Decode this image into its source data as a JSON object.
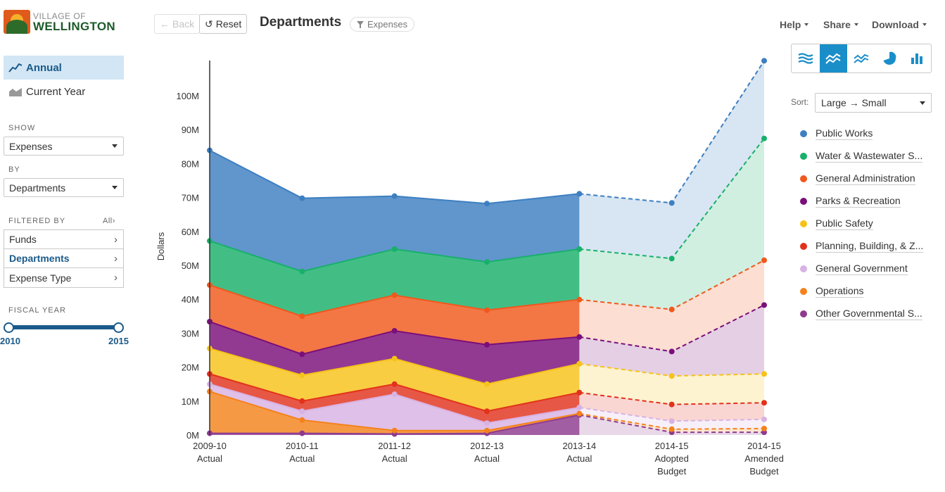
{
  "logo": {
    "line1": "VILLAGE OF",
    "line2": "WELLINGTON"
  },
  "sidebar": {
    "views": [
      {
        "label": "Annual",
        "active": true,
        "icon": "line-trend-icon"
      },
      {
        "label": "Current Year",
        "active": false,
        "icon": "area-chart-icon"
      }
    ],
    "show_label": "SHOW",
    "show_value": "Expenses",
    "by_label": "BY",
    "by_value": "Departments",
    "filtered_label": "FILTERED BY",
    "all_label": "All",
    "filters": [
      {
        "label": "Funds",
        "active": false
      },
      {
        "label": "Departments",
        "active": true
      },
      {
        "label": "Expense Type",
        "active": false
      }
    ],
    "fiscal_label": "FISCAL YEAR",
    "fiscal_start": "2010",
    "fiscal_end": "2015"
  },
  "toolbar": {
    "back_label": "Back",
    "reset_label": "Reset",
    "title": "Departments",
    "filter_chip": "Expenses",
    "help_label": "Help",
    "share_label": "Share",
    "download_label": "Download"
  },
  "chart_types": [
    {
      "name": "stream-chart-icon",
      "active": false
    },
    {
      "name": "stacked-area-icon",
      "active": true
    },
    {
      "name": "line-chart-icon",
      "active": false
    },
    {
      "name": "pie-chart-icon",
      "active": false
    },
    {
      "name": "bar-chart-icon",
      "active": false
    }
  ],
  "sort": {
    "label": "Sort:",
    "from": "Large",
    "to": "Small"
  },
  "legend": [
    {
      "label": "Public Works",
      "color": "#3d7fc1"
    },
    {
      "label": "Water & Wastewater S...",
      "color": "#18b06a"
    },
    {
      "label": "General Administration",
      "color": "#f0581c"
    },
    {
      "label": "Parks & Recreation",
      "color": "#7a0f7a"
    },
    {
      "label": "Public Safety",
      "color": "#f6c218"
    },
    {
      "label": "Planning, Building, & Z...",
      "color": "#e2321c"
    },
    {
      "label": "General Government",
      "color": "#d8b2e3"
    },
    {
      "label": "Operations",
      "color": "#f4821c"
    },
    {
      "label": "Other Governmental S...",
      "color": "#8e3b8e"
    }
  ],
  "chart_data": {
    "type": "area",
    "stacked": true,
    "ylabel": "Dollars",
    "yticks": [
      "0M",
      "10M",
      "20M",
      "30M",
      "40M",
      "50M",
      "60M",
      "70M",
      "80M",
      "90M",
      "100M"
    ],
    "ylim": [
      0,
      110
    ],
    "categories": [
      [
        "2009-10",
        "Actual"
      ],
      [
        "2010-11",
        "Actual"
      ],
      [
        "2011-12",
        "Actual"
      ],
      [
        "2012-13",
        "Actual"
      ],
      [
        "2013-14",
        "Actual"
      ],
      [
        "2014-15",
        "Adopted",
        "Budget"
      ],
      [
        "2014-15",
        "Amended",
        "Budget"
      ]
    ],
    "actual_count": 5,
    "stack_order_bottom_to_top": [
      "Other Governmental S...",
      "Operations",
      "General Government",
      "Planning, Building, & Z...",
      "Public Safety",
      "Parks & Recreation",
      "General Administration",
      "Water & Wastewater S...",
      "Public Works"
    ],
    "cumulative_tops_millions": [
      [
        0.5,
        0.5,
        0.3,
        0.5,
        5.9,
        0.8,
        0.8
      ],
      [
        12.8,
        4.4,
        1.3,
        1.3,
        6.3,
        1.7,
        1.9
      ],
      [
        15,
        7,
        12,
        3.5,
        8.1,
        4.1,
        4.6
      ],
      [
        18,
        10,
        15,
        7,
        12.5,
        9,
        9.5
      ],
      [
        25.5,
        17.6,
        22.5,
        15,
        21,
        17.4,
        18
      ],
      [
        33.4,
        23.8,
        30.7,
        26.6,
        28.9,
        24.6,
        38.3
      ],
      [
        44.2,
        35,
        41.2,
        36.8,
        39.9,
        37,
        51.5
      ],
      [
        57.2,
        48.2,
        54.8,
        51,
        54.8,
        52,
        87.4
      ],
      [
        83.9,
        69.8,
        70.4,
        68.2,
        71.1,
        68.4,
        110.3
      ]
    ]
  }
}
